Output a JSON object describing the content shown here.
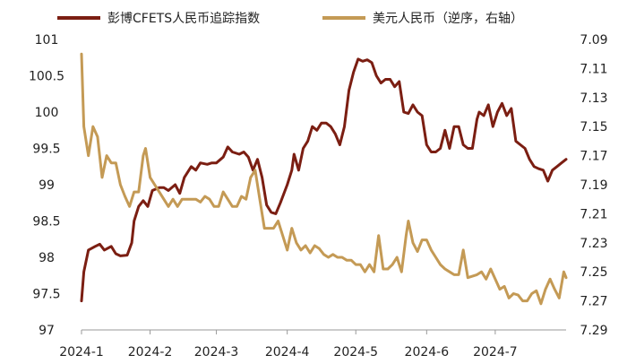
{
  "chart_data": {
    "type": "line",
    "title": "",
    "colors": {
      "cfets": "#7B1E12",
      "usdcny": "#C49A55"
    },
    "legend_position": "top",
    "grid": false,
    "x_range": [
      "2024-01-02",
      "2024-08-01"
    ],
    "x_ticks": [
      {
        "label": "2024-1",
        "date": "2024-01-01"
      },
      {
        "label": "2024-2",
        "date": "2024-02-01"
      },
      {
        "label": "2024-3",
        "date": "2024-03-01"
      },
      {
        "label": "2024-4",
        "date": "2024-04-01"
      },
      {
        "label": "2024-5",
        "date": "2024-05-01"
      },
      {
        "label": "2024-6",
        "date": "2024-06-01"
      },
      {
        "label": "2024-7",
        "date": "2024-07-01"
      }
    ],
    "y_left": {
      "min": 97,
      "max": 101,
      "ticks": [
        {
          "value": 101,
          "label": "101"
        },
        {
          "value": 100.5,
          "label": "100.5"
        },
        {
          "value": 100,
          "label": "100"
        },
        {
          "value": 99.5,
          "label": "99.5"
        },
        {
          "value": 99,
          "label": "99"
        },
        {
          "value": 98.5,
          "label": "98.5"
        },
        {
          "value": 98,
          "label": "98"
        },
        {
          "value": 97.5,
          "label": "97.5"
        },
        {
          "value": 97,
          "label": "97"
        }
      ]
    },
    "y_right": {
      "min": 7.09,
      "max": 7.29,
      "inverted": true,
      "ticks": [
        {
          "value": 7.09,
          "label": "7.09"
        },
        {
          "value": 7.11,
          "label": "7.11"
        },
        {
          "value": 7.13,
          "label": "7.13"
        },
        {
          "value": 7.15,
          "label": "7.15"
        },
        {
          "value": 7.17,
          "label": "7.17"
        },
        {
          "value": 7.19,
          "label": "7.19"
        },
        {
          "value": 7.21,
          "label": "7.21"
        },
        {
          "value": 7.23,
          "label": "7.23"
        },
        {
          "value": 7.25,
          "label": "7.25"
        },
        {
          "value": 7.27,
          "label": "7.27"
        },
        {
          "value": 7.29,
          "label": "7.29"
        }
      ]
    },
    "series": [
      {
        "name": "彭博CFETS人民币追踪指数",
        "axis": "left",
        "color_key": "cfets",
        "points": [
          [
            "2024-01-02",
            97.4
          ],
          [
            "2024-01-03",
            97.8
          ],
          [
            "2024-01-05",
            98.1
          ],
          [
            "2024-01-08",
            98.15
          ],
          [
            "2024-01-10",
            98.18
          ],
          [
            "2024-01-12",
            98.1
          ],
          [
            "2024-01-15",
            98.15
          ],
          [
            "2024-01-17",
            98.05
          ],
          [
            "2024-01-19",
            98.02
          ],
          [
            "2024-01-22",
            98.03
          ],
          [
            "2024-01-24",
            98.2
          ],
          [
            "2024-01-25",
            98.5
          ],
          [
            "2024-01-27",
            98.7
          ],
          [
            "2024-01-29",
            98.78
          ],
          [
            "2024-01-31",
            98.7
          ],
          [
            "2024-02-02",
            98.92
          ],
          [
            "2024-02-05",
            98.96
          ],
          [
            "2024-02-07",
            98.96
          ],
          [
            "2024-02-09",
            98.92
          ],
          [
            "2024-02-12",
            99.0
          ],
          [
            "2024-02-14",
            98.88
          ],
          [
            "2024-02-16",
            99.1
          ],
          [
            "2024-02-19",
            99.25
          ],
          [
            "2024-02-21",
            99.2
          ],
          [
            "2024-02-23",
            99.3
          ],
          [
            "2024-02-26",
            99.28
          ],
          [
            "2024-02-28",
            99.3
          ],
          [
            "2024-03-01",
            99.3
          ],
          [
            "2024-03-04",
            99.38
          ],
          [
            "2024-03-06",
            99.52
          ],
          [
            "2024-03-08",
            99.45
          ],
          [
            "2024-03-11",
            99.42
          ],
          [
            "2024-03-13",
            99.45
          ],
          [
            "2024-03-15",
            99.38
          ],
          [
            "2024-03-17",
            99.2
          ],
          [
            "2024-03-19",
            99.35
          ],
          [
            "2024-03-21",
            99.1
          ],
          [
            "2024-03-23",
            98.72
          ],
          [
            "2024-03-25",
            98.62
          ],
          [
            "2024-03-27",
            98.6
          ],
          [
            "2024-03-29",
            98.75
          ],
          [
            "2024-04-01",
            99.0
          ],
          [
            "2024-04-03",
            99.2
          ],
          [
            "2024-04-04",
            99.42
          ],
          [
            "2024-04-06",
            99.2
          ],
          [
            "2024-04-08",
            99.5
          ],
          [
            "2024-04-10",
            99.6
          ],
          [
            "2024-04-12",
            99.8
          ],
          [
            "2024-04-14",
            99.75
          ],
          [
            "2024-04-16",
            99.85
          ],
          [
            "2024-04-18",
            99.85
          ],
          [
            "2024-04-20",
            99.8
          ],
          [
            "2024-04-22",
            99.7
          ],
          [
            "2024-04-24",
            99.55
          ],
          [
            "2024-04-26",
            99.8
          ],
          [
            "2024-04-28",
            100.3
          ],
          [
            "2024-04-30",
            100.55
          ],
          [
            "2024-05-02",
            100.73
          ],
          [
            "2024-05-04",
            100.7
          ],
          [
            "2024-05-06",
            100.72
          ],
          [
            "2024-05-08",
            100.68
          ],
          [
            "2024-05-10",
            100.5
          ],
          [
            "2024-05-12",
            100.4
          ],
          [
            "2024-05-14",
            100.45
          ],
          [
            "2024-05-16",
            100.45
          ],
          [
            "2024-05-18",
            100.35
          ],
          [
            "2024-05-20",
            100.42
          ],
          [
            "2024-05-22",
            100.0
          ],
          [
            "2024-05-24",
            99.98
          ],
          [
            "2024-05-26",
            100.1
          ],
          [
            "2024-05-28",
            100.0
          ],
          [
            "2024-05-30",
            99.95
          ],
          [
            "2024-06-01",
            99.55
          ],
          [
            "2024-06-03",
            99.45
          ],
          [
            "2024-06-05",
            99.45
          ],
          [
            "2024-06-07",
            99.5
          ],
          [
            "2024-06-09",
            99.75
          ],
          [
            "2024-06-11",
            99.5
          ],
          [
            "2024-06-13",
            99.8
          ],
          [
            "2024-06-15",
            99.8
          ],
          [
            "2024-06-17",
            99.55
          ],
          [
            "2024-06-19",
            99.5
          ],
          [
            "2024-06-21",
            99.5
          ],
          [
            "2024-06-23",
            99.9
          ],
          [
            "2024-06-24",
            100.0
          ],
          [
            "2024-06-26",
            99.95
          ],
          [
            "2024-06-28",
            100.1
          ],
          [
            "2024-06-30",
            99.8
          ],
          [
            "2024-07-02",
            100.0
          ],
          [
            "2024-07-04",
            100.12
          ],
          [
            "2024-07-06",
            99.95
          ],
          [
            "2024-07-08",
            100.05
          ],
          [
            "2024-07-10",
            99.6
          ],
          [
            "2024-07-12",
            99.55
          ],
          [
            "2024-07-14",
            99.5
          ],
          [
            "2024-07-16",
            99.35
          ],
          [
            "2024-07-18",
            99.25
          ],
          [
            "2024-07-20",
            99.22
          ],
          [
            "2024-07-22",
            99.2
          ],
          [
            "2024-07-24",
            99.05
          ],
          [
            "2024-07-26",
            99.2
          ],
          [
            "2024-07-28",
            99.25
          ],
          [
            "2024-07-30",
            99.3
          ],
          [
            "2024-08-01",
            99.35
          ]
        ]
      },
      {
        "name": "美元人民币（逆序，右轴）",
        "axis": "right",
        "color_key": "usdcny",
        "points": [
          [
            "2024-01-02",
            7.1
          ],
          [
            "2024-01-03",
            7.15
          ],
          [
            "2024-01-05",
            7.17
          ],
          [
            "2024-01-07",
            7.15
          ],
          [
            "2024-01-09",
            7.157
          ],
          [
            "2024-01-11",
            7.185
          ],
          [
            "2024-01-13",
            7.17
          ],
          [
            "2024-01-15",
            7.175
          ],
          [
            "2024-01-17",
            7.175
          ],
          [
            "2024-01-19",
            7.19
          ],
          [
            "2024-01-21",
            7.198
          ],
          [
            "2024-01-23",
            7.205
          ],
          [
            "2024-01-25",
            7.195
          ],
          [
            "2024-01-27",
            7.195
          ],
          [
            "2024-01-29",
            7.17
          ],
          [
            "2024-01-30",
            7.165
          ],
          [
            "2024-02-01",
            7.185
          ],
          [
            "2024-02-03",
            7.19
          ],
          [
            "2024-02-05",
            7.195
          ],
          [
            "2024-02-07",
            7.2
          ],
          [
            "2024-02-09",
            7.205
          ],
          [
            "2024-02-11",
            7.2
          ],
          [
            "2024-02-13",
            7.205
          ],
          [
            "2024-02-15",
            7.2
          ],
          [
            "2024-02-17",
            7.2
          ],
          [
            "2024-02-19",
            7.2
          ],
          [
            "2024-02-21",
            7.2
          ],
          [
            "2024-02-23",
            7.202
          ],
          [
            "2024-02-25",
            7.198
          ],
          [
            "2024-02-27",
            7.2
          ],
          [
            "2024-02-29",
            7.205
          ],
          [
            "2024-03-02",
            7.205
          ],
          [
            "2024-03-04",
            7.195
          ],
          [
            "2024-03-06",
            7.2
          ],
          [
            "2024-03-08",
            7.205
          ],
          [
            "2024-03-10",
            7.205
          ],
          [
            "2024-03-12",
            7.198
          ],
          [
            "2024-03-14",
            7.2
          ],
          [
            "2024-03-16",
            7.185
          ],
          [
            "2024-03-18",
            7.18
          ],
          [
            "2024-03-20",
            7.2
          ],
          [
            "2024-03-22",
            7.22
          ],
          [
            "2024-03-24",
            7.22
          ],
          [
            "2024-03-26",
            7.22
          ],
          [
            "2024-03-28",
            7.215
          ],
          [
            "2024-03-30",
            7.225
          ],
          [
            "2024-04-01",
            7.235
          ],
          [
            "2024-04-03",
            7.22
          ],
          [
            "2024-04-05",
            7.23
          ],
          [
            "2024-04-07",
            7.235
          ],
          [
            "2024-04-09",
            7.232
          ],
          [
            "2024-04-11",
            7.237
          ],
          [
            "2024-04-13",
            7.232
          ],
          [
            "2024-04-15",
            7.234
          ],
          [
            "2024-04-17",
            7.238
          ],
          [
            "2024-04-19",
            7.24
          ],
          [
            "2024-04-21",
            7.238
          ],
          [
            "2024-04-23",
            7.24
          ],
          [
            "2024-04-25",
            7.24
          ],
          [
            "2024-04-27",
            7.242
          ],
          [
            "2024-04-29",
            7.242
          ],
          [
            "2024-05-01",
            7.245
          ],
          [
            "2024-05-03",
            7.245
          ],
          [
            "2024-05-05",
            7.25
          ],
          [
            "2024-05-07",
            7.245
          ],
          [
            "2024-05-09",
            7.25
          ],
          [
            "2024-05-11",
            7.225
          ],
          [
            "2024-05-13",
            7.248
          ],
          [
            "2024-05-15",
            7.248
          ],
          [
            "2024-05-17",
            7.245
          ],
          [
            "2024-05-19",
            7.24
          ],
          [
            "2024-05-21",
            7.25
          ],
          [
            "2024-05-23",
            7.225
          ],
          [
            "2024-05-24",
            7.215
          ],
          [
            "2024-05-26",
            7.23
          ],
          [
            "2024-05-28",
            7.236
          ],
          [
            "2024-05-30",
            7.228
          ],
          [
            "2024-06-01",
            7.228
          ],
          [
            "2024-06-03",
            7.235
          ],
          [
            "2024-06-05",
            7.24
          ],
          [
            "2024-06-07",
            7.245
          ],
          [
            "2024-06-09",
            7.248
          ],
          [
            "2024-06-11",
            7.25
          ],
          [
            "2024-06-13",
            7.252
          ],
          [
            "2024-06-15",
            7.252
          ],
          [
            "2024-06-17",
            7.235
          ],
          [
            "2024-06-19",
            7.254
          ],
          [
            "2024-06-21",
            7.253
          ],
          [
            "2024-06-23",
            7.252
          ],
          [
            "2024-06-25",
            7.25
          ],
          [
            "2024-06-27",
            7.255
          ],
          [
            "2024-06-29",
            7.248
          ],
          [
            "2024-07-01",
            7.255
          ],
          [
            "2024-07-03",
            7.262
          ],
          [
            "2024-07-05",
            7.26
          ],
          [
            "2024-07-07",
            7.268
          ],
          [
            "2024-07-09",
            7.265
          ],
          [
            "2024-07-11",
            7.266
          ],
          [
            "2024-07-13",
            7.27
          ],
          [
            "2024-07-15",
            7.27
          ],
          [
            "2024-07-17",
            7.265
          ],
          [
            "2024-07-19",
            7.263
          ],
          [
            "2024-07-21",
            7.272
          ],
          [
            "2024-07-23",
            7.262
          ],
          [
            "2024-07-25",
            7.255
          ],
          [
            "2024-07-27",
            7.262
          ],
          [
            "2024-07-29",
            7.268
          ],
          [
            "2024-07-31",
            7.25
          ],
          [
            "2024-08-01",
            7.254
          ]
        ]
      }
    ]
  }
}
